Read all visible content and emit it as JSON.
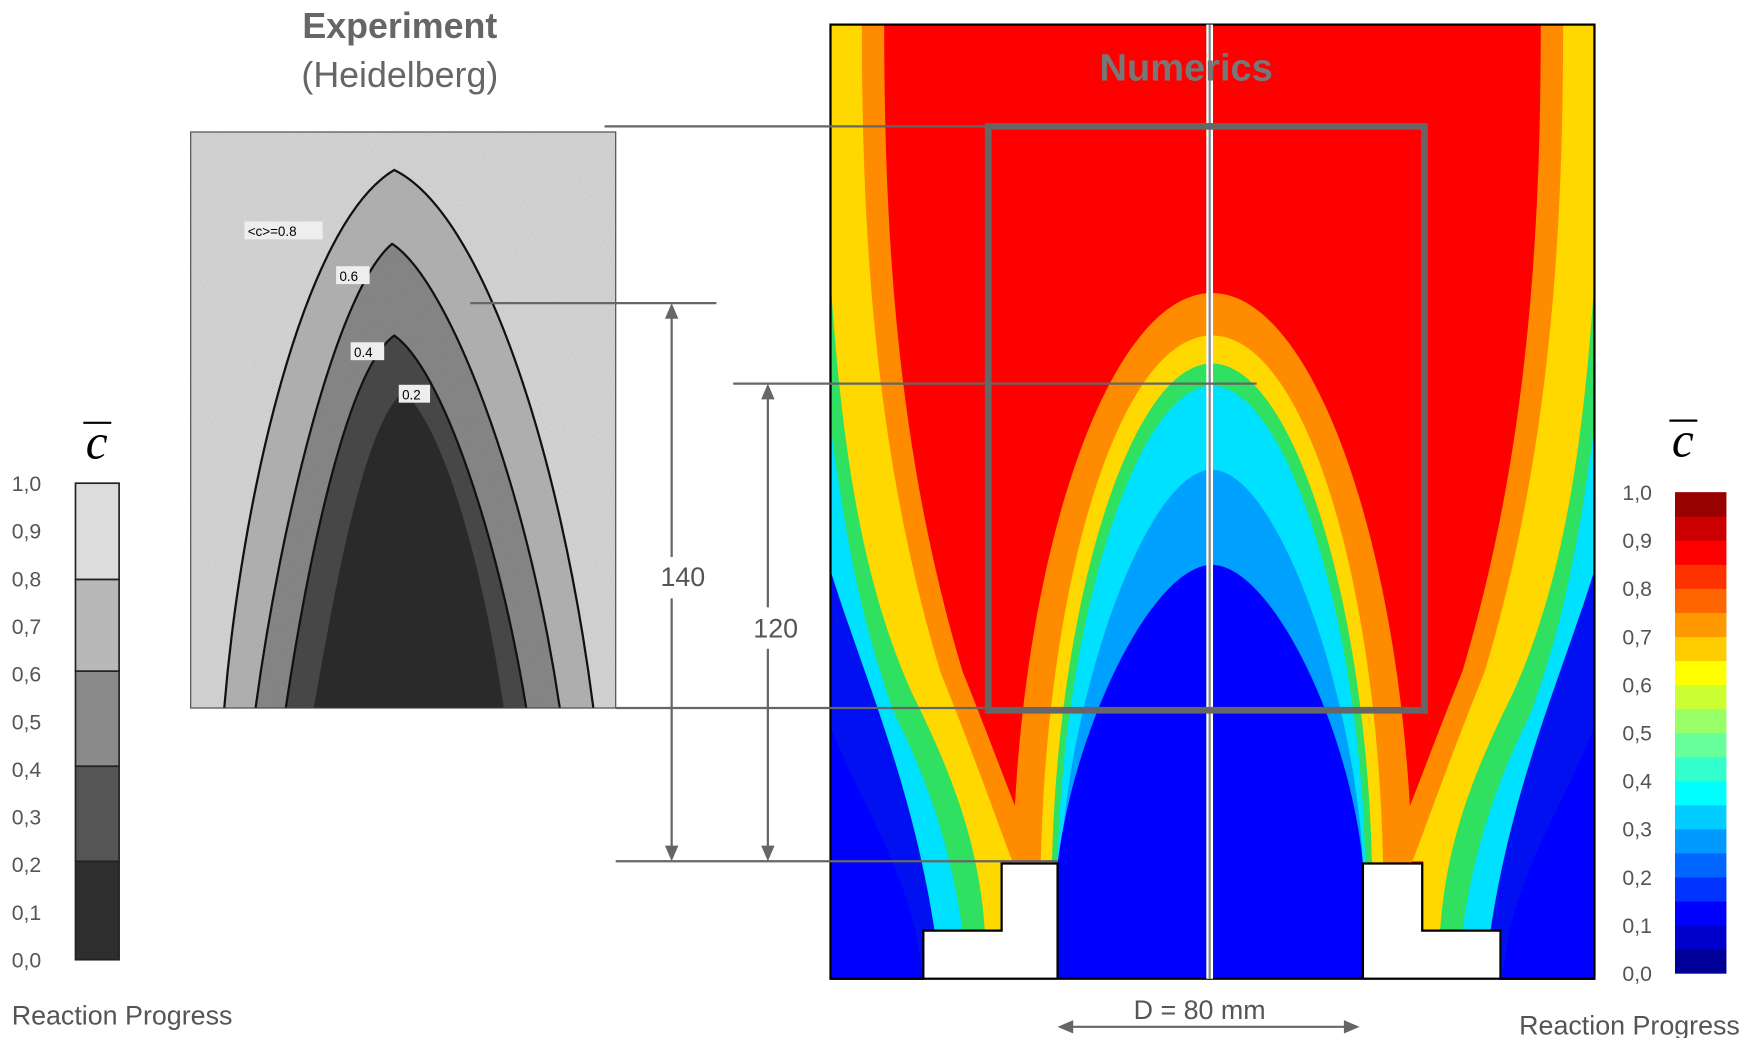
{
  "experiment": {
    "title": "Experiment",
    "subtitle": "(Heidelberg)",
    "contour_labels": [
      "<c>=0.8",
      "0.6",
      "0.4",
      "0.2"
    ]
  },
  "numerics": {
    "title": "Numerics"
  },
  "dimensions": [
    "140",
    "120",
    "D = 80 mm"
  ],
  "left_colorbar": {
    "symbol": "c",
    "ticks": [
      "1,0",
      "0,9",
      "0,8",
      "0,7",
      "0,6",
      "0,5",
      "0,4",
      "0,3",
      "0,2",
      "0,1",
      "0,0"
    ],
    "label": "Reaction Progress"
  },
  "right_colorbar": {
    "symbol": "c",
    "ticks": [
      "1,0",
      "0,9",
      "0,8",
      "0,7",
      "0,6",
      "0,5",
      "0,4",
      "0,3",
      "0,2",
      "0,1",
      "0,0"
    ],
    "label": "Reaction Progress"
  }
}
